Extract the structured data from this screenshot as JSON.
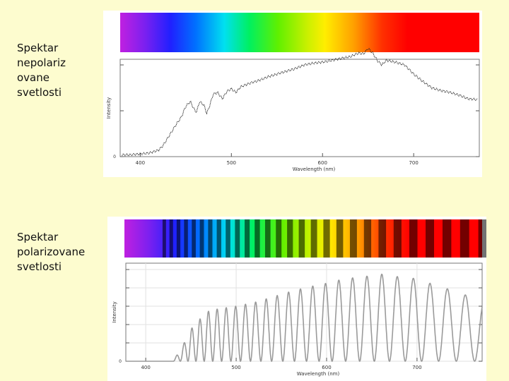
{
  "labels": {
    "unpolarized": "Spektar nepolariz ovane svetlosti",
    "polarized": "Spektar polarizovane svetlosti"
  },
  "chart_data": [
    {
      "type": "line",
      "title": "",
      "xlabel": "Wavelength (nm)",
      "ylabel": "Intensity",
      "xlim": [
        378,
        772
      ],
      "ylim": [
        0,
        1
      ],
      "x_ticks": [
        400,
        500,
        600,
        700
      ],
      "y_ticks": [
        0,
        0.5,
        1
      ],
      "y_tick_labels": [
        "0",
        "",
        ""
      ],
      "grid": false,
      "legend": "none",
      "spectrum_bar": true,
      "series": [
        {
          "x": [
            378,
            390,
            400,
            410,
            420,
            425,
            430,
            435,
            440,
            445,
            450,
            455,
            460,
            462,
            465,
            470,
            473,
            476,
            480,
            485,
            490,
            495,
            500,
            505,
            510,
            520,
            530,
            540,
            550,
            560,
            570,
            580,
            590,
            600,
            610,
            620,
            630,
            640,
            645,
            650,
            655,
            660,
            665,
            670,
            675,
            680,
            690,
            700,
            710,
            720,
            730,
            740,
            750,
            760,
            772
          ],
          "y": [
            0.02,
            0.02,
            0.03,
            0.04,
            0.07,
            0.12,
            0.2,
            0.28,
            0.36,
            0.43,
            0.55,
            0.6,
            0.5,
            0.49,
            0.6,
            0.56,
            0.47,
            0.55,
            0.68,
            0.7,
            0.63,
            0.71,
            0.74,
            0.7,
            0.76,
            0.8,
            0.83,
            0.87,
            0.9,
            0.93,
            0.96,
            1.0,
            1.02,
            1.03,
            1.05,
            1.07,
            1.09,
            1.13,
            1.12,
            1.18,
            1.13,
            1.05,
            1.0,
            1.05,
            1.04,
            1.03,
            1.0,
            0.9,
            0.82,
            0.75,
            0.72,
            0.7,
            0.67,
            0.63,
            0.62
          ]
        }
      ]
    },
    {
      "type": "line",
      "title": "",
      "xlabel": "Wavelength (nm)",
      "ylabel": "Intensity",
      "xlim": [
        378,
        772
      ],
      "ylim": [
        0,
        1
      ],
      "x_ticks": [
        400,
        500,
        600,
        700
      ],
      "y_ticks": [
        0,
        0.2,
        0.4,
        0.6,
        0.8,
        1
      ],
      "y_tick_labels": [
        "0",
        "",
        "",
        "",
        "",
        ""
      ],
      "grid": true,
      "legend": "none",
      "spectrum_bar": true,
      "series": [
        {
          "envelope_x": [
            378,
            420,
            430,
            440,
            450,
            460,
            470,
            480,
            500,
            520,
            540,
            560,
            580,
            600,
            620,
            640,
            660,
            680,
            700,
            720,
            740,
            760,
            772
          ],
          "envelope_y": [
            0.0,
            0.0,
            0.0,
            0.15,
            0.35,
            0.46,
            0.55,
            0.57,
            0.6,
            0.64,
            0.7,
            0.76,
            0.81,
            0.85,
            0.9,
            0.92,
            0.95,
            0.92,
            0.9,
            0.83,
            0.77,
            0.7,
            0.66
          ],
          "oscillation": "sinusoidal fringes, period decreasing from about 6 nm to about 21 nm"
        }
      ]
    }
  ]
}
